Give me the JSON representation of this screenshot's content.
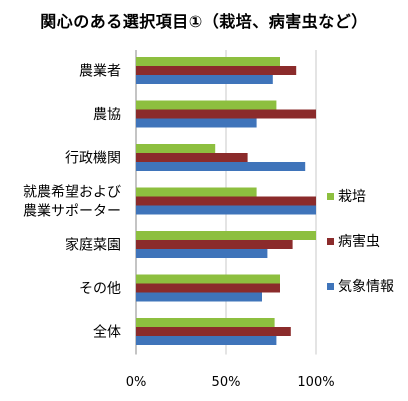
{
  "chart_data": {
    "type": "bar",
    "orientation": "horizontal",
    "title": "関心のある選択項目①（栽培、病害虫など）",
    "categories": [
      [
        "農業者"
      ],
      [
        "農協"
      ],
      [
        "行政機関"
      ],
      [
        "就農希望および",
        "農業サポーター"
      ],
      [
        "家庭菜園"
      ],
      [
        "その他"
      ],
      [
        "全体"
      ]
    ],
    "series": [
      {
        "name": "栽培",
        "color": "#8DBF3F",
        "values": [
          0.8,
          0.78,
          0.44,
          0.67,
          1.0,
          0.8,
          0.77
        ]
      },
      {
        "name": "病害虫",
        "color": "#8B2B2B",
        "values": [
          0.89,
          1.0,
          0.62,
          1.0,
          0.87,
          0.8,
          0.86
        ]
      },
      {
        "name": "気象情報",
        "color": "#3F74BA",
        "values": [
          0.76,
          0.67,
          0.94,
          1.0,
          0.73,
          0.7,
          0.78
        ]
      }
    ],
    "xlim": [
      0,
      1
    ],
    "xticks": [
      "0%",
      "50%",
      "100%"
    ],
    "grid": "vertical",
    "legend": "right"
  }
}
